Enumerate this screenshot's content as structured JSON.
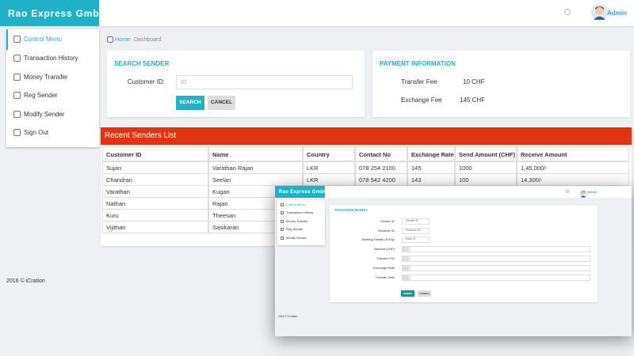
{
  "header": {
    "brand": "Rao Express GmbH",
    "user": "Admin"
  },
  "sidebar": {
    "items": [
      "Control Menu",
      "Transaction History",
      "Money Transfer",
      "Reg Sender",
      "Modify Sender",
      "Sign Out"
    ]
  },
  "breadcrumb": [
    "Home",
    "Dashboard"
  ],
  "search_card": {
    "title": "SEARCH SENDER",
    "label": "Customer ID:",
    "placeholder": "ID",
    "buttons": [
      "SEARCH",
      "CANCEL"
    ]
  },
  "payment_card": {
    "title": "PAYMENT INFORMATION",
    "rows": [
      [
        "Transfer Fee",
        "10 CHF"
      ],
      [
        "Exchange Fee",
        "145 CHF"
      ]
    ]
  },
  "table": {
    "title": "Recent Senders List",
    "columns": [
      "Customer ID",
      "Name",
      "Country",
      "Contact No",
      "Exchange Rate",
      "Send Amount (CHF)",
      "Receive Amount"
    ],
    "rows": [
      [
        "Sujan",
        "Varathan Rajan",
        "LKR",
        "078 254 2100",
        "145",
        "1000",
        "1,45,000/-"
      ],
      [
        "Chandran",
        "Seelan",
        "LKR",
        "078 542 4200",
        "143",
        "100",
        "14,300/-"
      ],
      [
        "Varathan",
        "Kugan"
      ],
      [
        "Nathan",
        "Rajan"
      ],
      [
        "Kuru",
        "Theesan"
      ],
      [
        "Vijithan",
        "Sasikaran"
      ]
    ]
  },
  "footer": "2016 © iCration",
  "overlay": {
    "header": {
      "brand": "Rao Express GmbH",
      "user": "Admin"
    },
    "sidebar": [
      "Control Menu",
      "Transaction History",
      "Money Transfer",
      "Reg Sender",
      "Modify Sender"
    ],
    "card": {
      "title": "TRANSFER MONEY",
      "fields": [
        {
          "label": "Sender ID",
          "placeholder": "- Sender ID -"
        },
        {
          "label": "Receiver ID",
          "placeholder": "- Receiver ID -"
        },
        {
          "label": "Banking Details (If Any)",
          "placeholder": "- Bank ID -"
        },
        {
          "label": "Amount (CHF)"
        },
        {
          "label": "Transfer Fee"
        },
        {
          "label": "Exchange Rate"
        },
        {
          "label": "Transfer Date"
        }
      ],
      "buttons": [
        "SUBMIT",
        "CANCEL"
      ]
    },
    "footer": "2016 © iCration"
  }
}
